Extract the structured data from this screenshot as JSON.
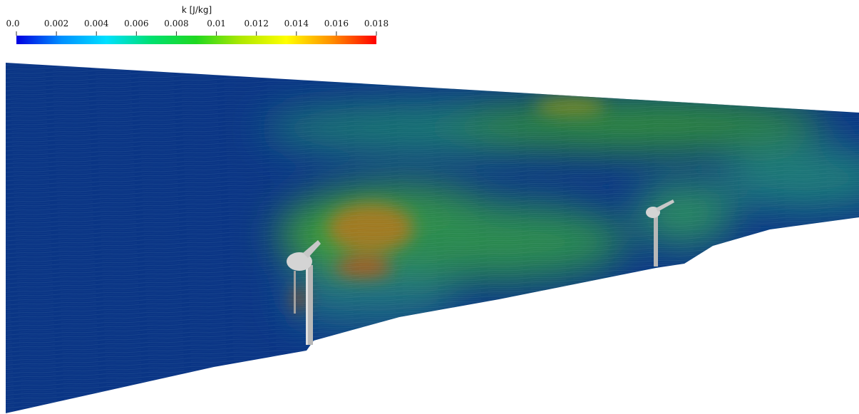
{
  "colorbar": {
    "title": "k [J/kg]",
    "lim": [
      0,
      0.018
    ],
    "ticks": [
      {
        "value": 0,
        "label": "0.0"
      },
      0.002,
      0.004,
      0.006,
      0.008,
      0.01,
      0.012,
      0.014,
      0.016,
      0.018
    ],
    "colormap": [
      "#0000e0",
      "#0090ff",
      "#00e0ff",
      "#00e070",
      "#20d820",
      "#b0e800",
      "#ffff00",
      "#ff9000",
      "#ff0000"
    ]
  }
}
